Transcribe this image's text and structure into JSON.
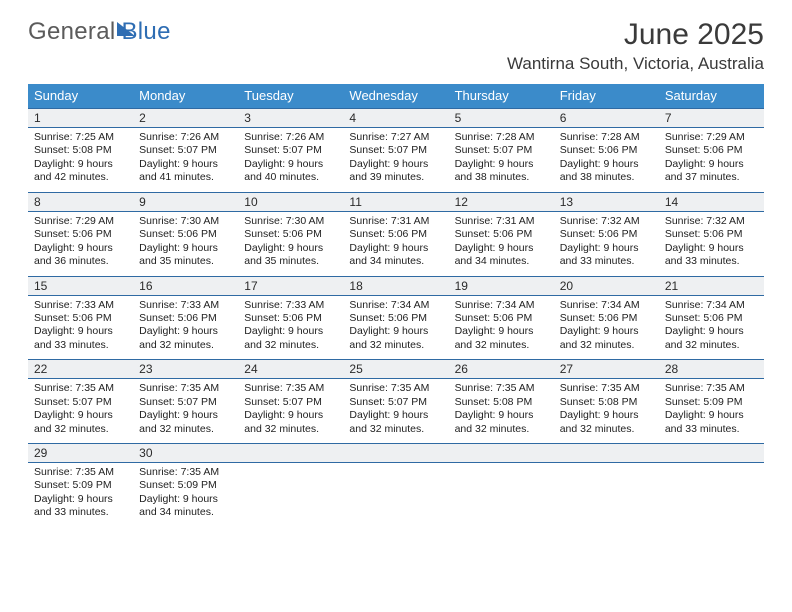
{
  "brand": {
    "part1": "General",
    "part2": "Blue"
  },
  "header": {
    "month_title": "June 2025",
    "location": "Wantirna South, Victoria, Australia"
  },
  "style": {
    "accent_header_bg": "#3b8bca",
    "accent_border": "#2f6aa3",
    "daynum_bg": "#eef0f2",
    "page_bg": "#ffffff",
    "text_color": "#222222",
    "logo_gray": "#5b5b5b",
    "logo_blue": "#2e6db3",
    "title_fontsize_pt": 22,
    "location_fontsize_pt": 13,
    "dow_fontsize_pt": 10,
    "cell_fontsize_pt": 8,
    "calendar_columns": 7
  },
  "days_of_week": [
    "Sunday",
    "Monday",
    "Tuesday",
    "Wednesday",
    "Thursday",
    "Friday",
    "Saturday"
  ],
  "weeks": [
    {
      "nums": [
        "1",
        "2",
        "3",
        "4",
        "5",
        "6",
        "7"
      ],
      "cells": [
        {
          "sunrise": "Sunrise: 7:25 AM",
          "sunset": "Sunset: 5:08 PM",
          "day_a": "Daylight: 9 hours",
          "day_b": "and 42 minutes."
        },
        {
          "sunrise": "Sunrise: 7:26 AM",
          "sunset": "Sunset: 5:07 PM",
          "day_a": "Daylight: 9 hours",
          "day_b": "and 41 minutes."
        },
        {
          "sunrise": "Sunrise: 7:26 AM",
          "sunset": "Sunset: 5:07 PM",
          "day_a": "Daylight: 9 hours",
          "day_b": "and 40 minutes."
        },
        {
          "sunrise": "Sunrise: 7:27 AM",
          "sunset": "Sunset: 5:07 PM",
          "day_a": "Daylight: 9 hours",
          "day_b": "and 39 minutes."
        },
        {
          "sunrise": "Sunrise: 7:28 AM",
          "sunset": "Sunset: 5:07 PM",
          "day_a": "Daylight: 9 hours",
          "day_b": "and 38 minutes."
        },
        {
          "sunrise": "Sunrise: 7:28 AM",
          "sunset": "Sunset: 5:06 PM",
          "day_a": "Daylight: 9 hours",
          "day_b": "and 38 minutes."
        },
        {
          "sunrise": "Sunrise: 7:29 AM",
          "sunset": "Sunset: 5:06 PM",
          "day_a": "Daylight: 9 hours",
          "day_b": "and 37 minutes."
        }
      ]
    },
    {
      "nums": [
        "8",
        "9",
        "10",
        "11",
        "12",
        "13",
        "14"
      ],
      "cells": [
        {
          "sunrise": "Sunrise: 7:29 AM",
          "sunset": "Sunset: 5:06 PM",
          "day_a": "Daylight: 9 hours",
          "day_b": "and 36 minutes."
        },
        {
          "sunrise": "Sunrise: 7:30 AM",
          "sunset": "Sunset: 5:06 PM",
          "day_a": "Daylight: 9 hours",
          "day_b": "and 35 minutes."
        },
        {
          "sunrise": "Sunrise: 7:30 AM",
          "sunset": "Sunset: 5:06 PM",
          "day_a": "Daylight: 9 hours",
          "day_b": "and 35 minutes."
        },
        {
          "sunrise": "Sunrise: 7:31 AM",
          "sunset": "Sunset: 5:06 PM",
          "day_a": "Daylight: 9 hours",
          "day_b": "and 34 minutes."
        },
        {
          "sunrise": "Sunrise: 7:31 AM",
          "sunset": "Sunset: 5:06 PM",
          "day_a": "Daylight: 9 hours",
          "day_b": "and 34 minutes."
        },
        {
          "sunrise": "Sunrise: 7:32 AM",
          "sunset": "Sunset: 5:06 PM",
          "day_a": "Daylight: 9 hours",
          "day_b": "and 33 minutes."
        },
        {
          "sunrise": "Sunrise: 7:32 AM",
          "sunset": "Sunset: 5:06 PM",
          "day_a": "Daylight: 9 hours",
          "day_b": "and 33 minutes."
        }
      ]
    },
    {
      "nums": [
        "15",
        "16",
        "17",
        "18",
        "19",
        "20",
        "21"
      ],
      "cells": [
        {
          "sunrise": "Sunrise: 7:33 AM",
          "sunset": "Sunset: 5:06 PM",
          "day_a": "Daylight: 9 hours",
          "day_b": "and 33 minutes."
        },
        {
          "sunrise": "Sunrise: 7:33 AM",
          "sunset": "Sunset: 5:06 PM",
          "day_a": "Daylight: 9 hours",
          "day_b": "and 32 minutes."
        },
        {
          "sunrise": "Sunrise: 7:33 AM",
          "sunset": "Sunset: 5:06 PM",
          "day_a": "Daylight: 9 hours",
          "day_b": "and 32 minutes."
        },
        {
          "sunrise": "Sunrise: 7:34 AM",
          "sunset": "Sunset: 5:06 PM",
          "day_a": "Daylight: 9 hours",
          "day_b": "and 32 minutes."
        },
        {
          "sunrise": "Sunrise: 7:34 AM",
          "sunset": "Sunset: 5:06 PM",
          "day_a": "Daylight: 9 hours",
          "day_b": "and 32 minutes."
        },
        {
          "sunrise": "Sunrise: 7:34 AM",
          "sunset": "Sunset: 5:06 PM",
          "day_a": "Daylight: 9 hours",
          "day_b": "and 32 minutes."
        },
        {
          "sunrise": "Sunrise: 7:34 AM",
          "sunset": "Sunset: 5:06 PM",
          "day_a": "Daylight: 9 hours",
          "day_b": "and 32 minutes."
        }
      ]
    },
    {
      "nums": [
        "22",
        "23",
        "24",
        "25",
        "26",
        "27",
        "28"
      ],
      "cells": [
        {
          "sunrise": "Sunrise: 7:35 AM",
          "sunset": "Sunset: 5:07 PM",
          "day_a": "Daylight: 9 hours",
          "day_b": "and 32 minutes."
        },
        {
          "sunrise": "Sunrise: 7:35 AM",
          "sunset": "Sunset: 5:07 PM",
          "day_a": "Daylight: 9 hours",
          "day_b": "and 32 minutes."
        },
        {
          "sunrise": "Sunrise: 7:35 AM",
          "sunset": "Sunset: 5:07 PM",
          "day_a": "Daylight: 9 hours",
          "day_b": "and 32 minutes."
        },
        {
          "sunrise": "Sunrise: 7:35 AM",
          "sunset": "Sunset: 5:07 PM",
          "day_a": "Daylight: 9 hours",
          "day_b": "and 32 minutes."
        },
        {
          "sunrise": "Sunrise: 7:35 AM",
          "sunset": "Sunset: 5:08 PM",
          "day_a": "Daylight: 9 hours",
          "day_b": "and 32 minutes."
        },
        {
          "sunrise": "Sunrise: 7:35 AM",
          "sunset": "Sunset: 5:08 PM",
          "day_a": "Daylight: 9 hours",
          "day_b": "and 32 minutes."
        },
        {
          "sunrise": "Sunrise: 7:35 AM",
          "sunset": "Sunset: 5:09 PM",
          "day_a": "Daylight: 9 hours",
          "day_b": "and 33 minutes."
        }
      ]
    },
    {
      "nums": [
        "29",
        "30",
        "",
        "",
        "",
        "",
        ""
      ],
      "cells": [
        {
          "sunrise": "Sunrise: 7:35 AM",
          "sunset": "Sunset: 5:09 PM",
          "day_a": "Daylight: 9 hours",
          "day_b": "and 33 minutes."
        },
        {
          "sunrise": "Sunrise: 7:35 AM",
          "sunset": "Sunset: 5:09 PM",
          "day_a": "Daylight: 9 hours",
          "day_b": "and 34 minutes."
        },
        null,
        null,
        null,
        null,
        null
      ]
    }
  ]
}
